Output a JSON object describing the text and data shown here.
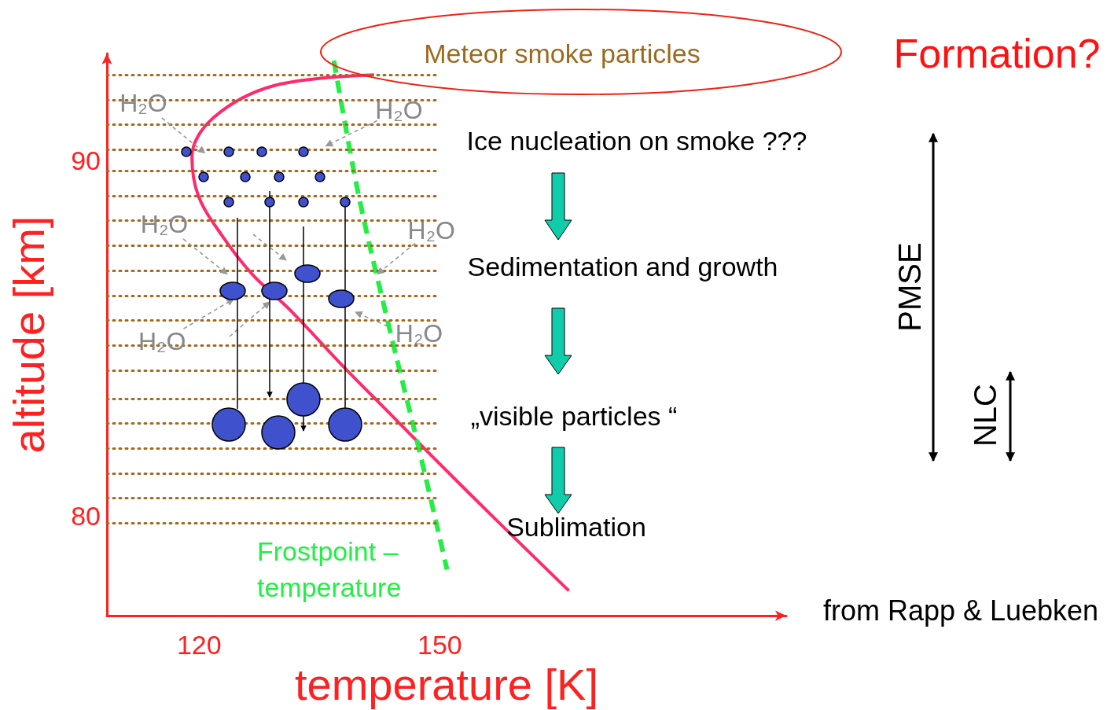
{
  "chart_data": {
    "type": "line",
    "xlabel": "temperature [K]",
    "ylabel": "altitude [km]",
    "xlim": [
      108.5,
      193.2
    ],
    "xticks": [
      120,
      150
    ],
    "ylim": [
      77.2,
      93.0
    ],
    "yticks": [
      80,
      90
    ],
    "marker": "none",
    "series": [
      {
        "color": "#ff2a6d",
        "x": [
          141.8,
          129.4,
          121.8,
          119.1,
          119.9,
          122.8,
          126.6,
          131.3,
          138.0,
          143.7,
          149.4,
          157.0,
          166.1
        ],
        "values": [
          92.4,
          92.1,
          91.2,
          90.1,
          89.0,
          87.9,
          86.8,
          85.8,
          84.2,
          82.9,
          81.6,
          79.9,
          77.9
        ]
      },
      {
        "name": "Frostpoint – temperature",
        "color": "#22ee44",
        "line_style": "dashed",
        "x": [
          136.8,
          139.9,
          143.7,
          147.5,
          150.9
        ],
        "values": [
          92.8,
          89.0,
          85.3,
          81.8,
          78.5
        ]
      }
    ],
    "ref_lines": [
      {
        "axis": "y",
        "value": 79.8,
        "color": "#a0691e",
        "line_style": "dotted"
      },
      {
        "axis": "y",
        "value": 80.5,
        "color": "#a0691e",
        "line_style": "dotted"
      },
      {
        "axis": "y",
        "value": 81.2,
        "color": "#a0691e",
        "line_style": "dotted"
      },
      {
        "axis": "y",
        "value": 81.9,
        "color": "#a0691e",
        "line_style": "dotted"
      },
      {
        "axis": "y",
        "value": 82.6,
        "color": "#a0691e",
        "line_style": "dotted"
      },
      {
        "axis": "y",
        "value": 83.3,
        "color": "#a0691e",
        "line_style": "dotted"
      },
      {
        "axis": "y",
        "value": 84.1,
        "color": "#a0691e",
        "line_style": "dotted"
      },
      {
        "axis": "y",
        "value": 84.8,
        "color": "#a0691e",
        "line_style": "dotted"
      },
      {
        "axis": "y",
        "value": 85.5,
        "color": "#a0691e",
        "line_style": "dotted"
      },
      {
        "axis": "y",
        "value": 86.2,
        "color": "#a0691e",
        "line_style": "dotted"
      },
      {
        "axis": "y",
        "value": 86.9,
        "color": "#a0691e",
        "line_style": "dotted"
      },
      {
        "axis": "y",
        "value": 87.6,
        "color": "#a0691e",
        "line_style": "dotted"
      },
      {
        "axis": "y",
        "value": 88.3,
        "color": "#a0691e",
        "line_style": "dotted"
      },
      {
        "axis": "y",
        "value": 89.0,
        "color": "#a0691e",
        "line_style": "dotted"
      },
      {
        "axis": "y",
        "value": 89.7,
        "color": "#a0691e",
        "line_style": "dotted"
      },
      {
        "axis": "y",
        "value": 90.3,
        "color": "#a0691e",
        "line_style": "dotted"
      },
      {
        "axis": "y",
        "value": 91.0,
        "color": "#a0691e",
        "line_style": "dotted"
      },
      {
        "axis": "y",
        "value": 91.7,
        "color": "#a0691e",
        "line_style": "dotted"
      },
      {
        "axis": "y",
        "value": 92.4,
        "color": "#a0691e",
        "line_style": "dotted"
      }
    ],
    "annotations": [
      "Meteor smoke particles",
      "Formation?",
      "Ice nucleation on smoke ???",
      "Sedimentation and growth",
      "„visible particles “",
      "Sublimation",
      "PMSE",
      "NLC",
      "from Rapp & Luebken",
      {
        "text": "H₂O",
        "x": 120.7,
        "y": 90.2
      },
      {
        "text": "H₂O",
        "x": 135.8,
        "y": 90.4
      },
      {
        "text": "H₂O",
        "x": 123.5,
        "y": 86.8
      },
      {
        "text": "H₂O",
        "x": 142.2,
        "y": 86.8
      },
      {
        "text": "H₂O",
        "x": 124.3,
        "y": 86.1
      },
      "H₂O"
    ]
  }
}
